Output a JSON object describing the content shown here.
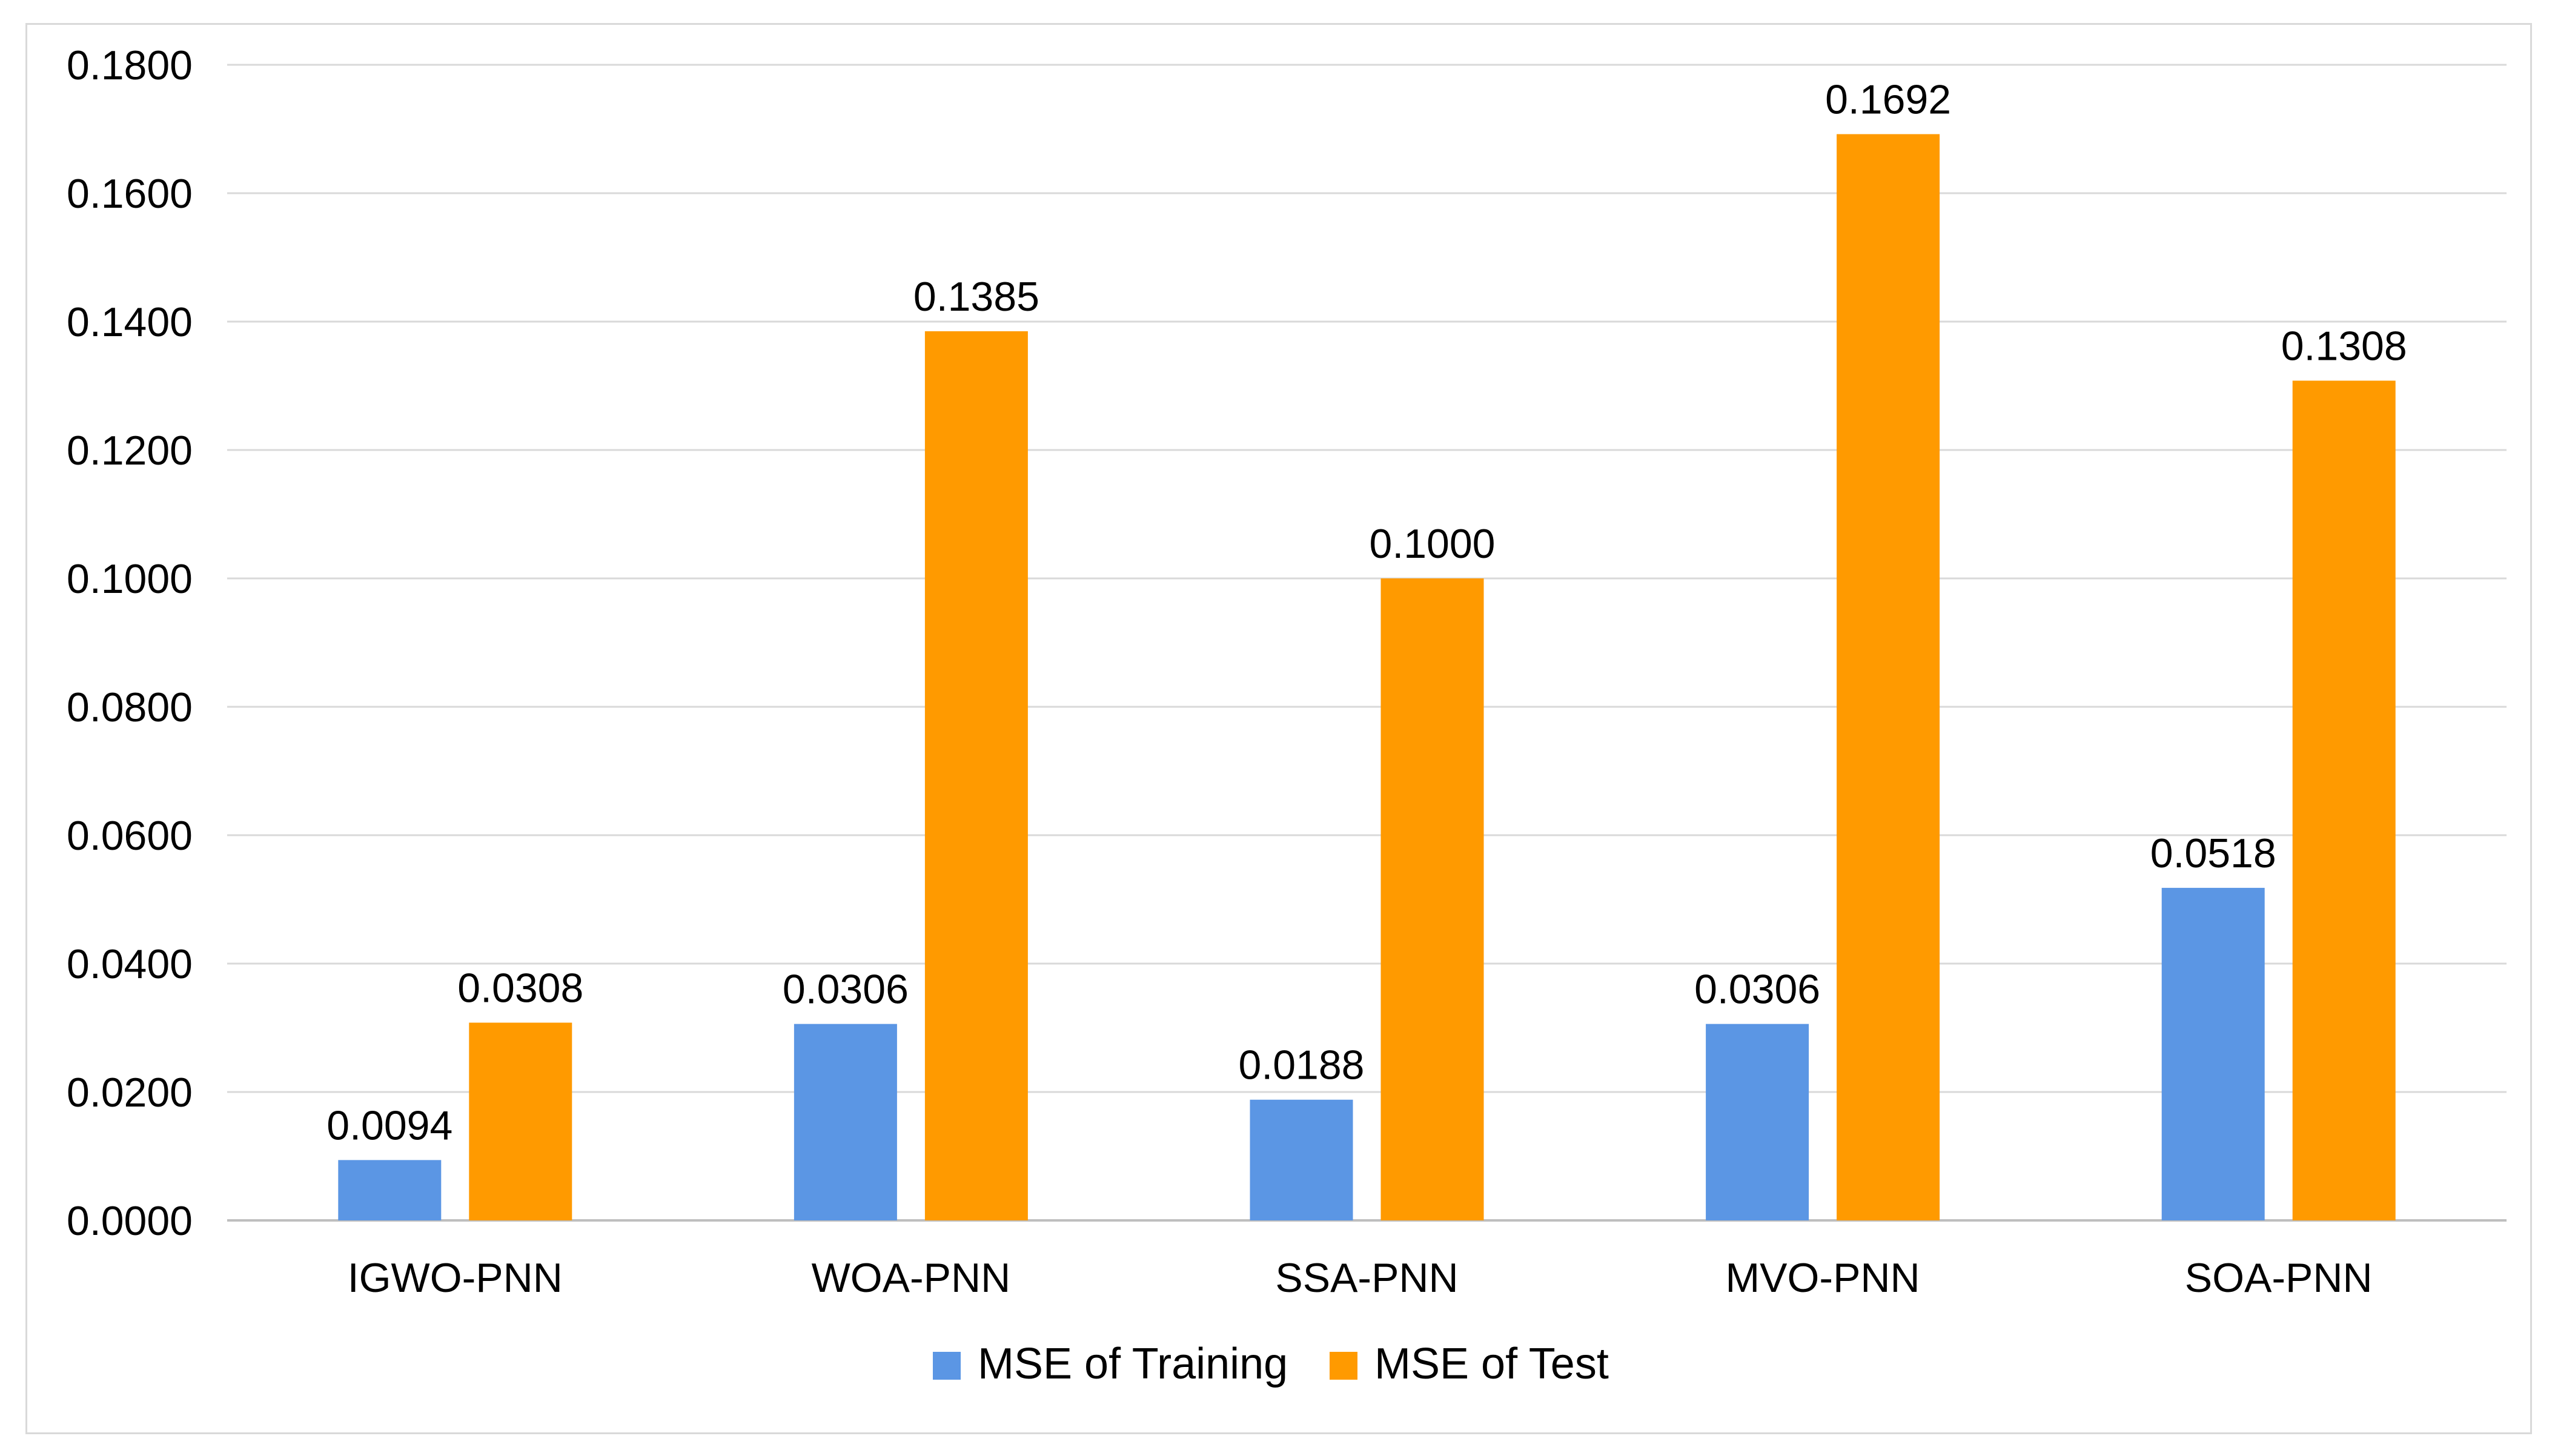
{
  "chart_data": {
    "type": "bar",
    "title": "",
    "xlabel": "",
    "ylabel": "",
    "categories": [
      "IGWO-PNN",
      "WOA-PNN",
      "SSA-PNN",
      "MVO-PNN",
      "SOA-PNN"
    ],
    "series": [
      {
        "name": "MSE of Training",
        "color": "#5b96e4",
        "values": [
          0.0094,
          0.0306,
          0.0188,
          0.0306,
          0.0518
        ],
        "labels": [
          "0.0094",
          "0.0306",
          "0.0188",
          "0.0306",
          "0.0518"
        ]
      },
      {
        "name": "MSE of Test",
        "color": "#ff9a00",
        "values": [
          0.0308,
          0.1385,
          0.1,
          0.1692,
          0.1308
        ],
        "labels": [
          "0.0308",
          "0.1385",
          "0.1000",
          "0.1692",
          "0.1308"
        ]
      }
    ],
    "ylim": [
      0,
      0.18
    ],
    "yticks": [
      0,
      0.02,
      0.04,
      0.06,
      0.08,
      0.1,
      0.12,
      0.14,
      0.16,
      0.18
    ],
    "ytick_labels": [
      "0.0000",
      "0.0200",
      "0.0400",
      "0.0600",
      "0.0800",
      "0.1000",
      "0.1200",
      "0.1400",
      "0.1600",
      "0.1800"
    ],
    "grid": true,
    "legend_position": "bottom-center",
    "gridline_color": "#d9d9d9",
    "axis_color": "#bfbfbf"
  }
}
